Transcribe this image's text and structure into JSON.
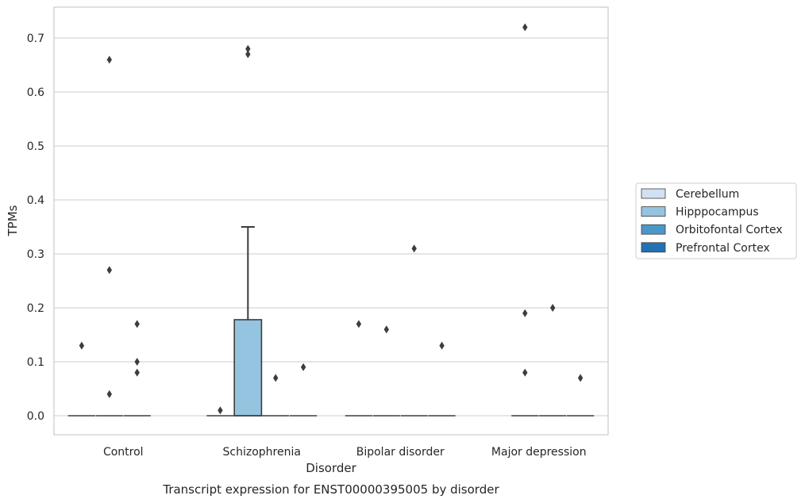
{
  "chart_data": {
    "type": "box",
    "title": "Transcript expression for ENST00000395005 by disorder",
    "xlabel": "Disorder",
    "ylabel": "TPMs",
    "ylim": [
      -0.035,
      0.76
    ],
    "yticks": [
      0.0,
      0.1,
      0.2,
      0.3,
      0.4,
      0.5,
      0.6,
      0.7
    ],
    "ytick_labels": [
      "0.0",
      "0.1",
      "0.2",
      "0.3",
      "0.4",
      "0.5",
      "0.6",
      "0.7"
    ],
    "grid": true,
    "legend_position": "right",
    "categories": [
      "Control",
      "Schizophrenia",
      "Bipolar disorder",
      "Major depression"
    ],
    "series": [
      {
        "name": "Cerebellum",
        "color": "#d0e1f2",
        "boxes": [
          {
            "q1": 0,
            "median": 0,
            "q3": 0,
            "whisker_low": 0,
            "whisker_high": 0,
            "outliers": [
              0.13
            ]
          },
          {
            "q1": 0,
            "median": 0,
            "q3": 0,
            "whisker_low": 0,
            "whisker_high": 0,
            "outliers": [
              0.01
            ]
          },
          {
            "q1": 0,
            "median": 0,
            "q3": 0,
            "whisker_low": 0,
            "whisker_high": 0,
            "outliers": [
              0.17
            ]
          },
          null
        ]
      },
      {
        "name": "Hipppocampus",
        "color": "#94c4df",
        "boxes": [
          {
            "q1": 0,
            "median": 0,
            "q3": 0,
            "whisker_low": 0,
            "whisker_high": 0,
            "outliers": [
              0.66,
              0.27,
              0.04
            ]
          },
          {
            "q1": 0,
            "median": 0,
            "q3": 0.178,
            "whisker_low": 0,
            "whisker_high": 0.35,
            "outliers": [
              0.68,
              0.67
            ]
          },
          {
            "q1": 0,
            "median": 0,
            "q3": 0,
            "whisker_low": 0,
            "whisker_high": 0,
            "outliers": [
              0.16
            ]
          },
          {
            "q1": 0,
            "median": 0,
            "q3": 0,
            "whisker_low": 0,
            "whisker_high": 0,
            "outliers": [
              0.72,
              0.19,
              0.08
            ]
          }
        ]
      },
      {
        "name": "Orbitofontal Cortex",
        "color": "#4a98c9",
        "boxes": [
          {
            "q1": 0,
            "median": 0,
            "q3": 0,
            "whisker_low": 0,
            "whisker_high": 0,
            "outliers": [
              0.17,
              0.1,
              0.08
            ]
          },
          {
            "q1": 0,
            "median": 0,
            "q3": 0,
            "whisker_low": 0,
            "whisker_high": 0,
            "outliers": [
              0.07
            ]
          },
          {
            "q1": 0,
            "median": 0,
            "q3": 0,
            "whisker_low": 0,
            "whisker_high": 0,
            "outliers": [
              0.31
            ]
          },
          {
            "q1": 0,
            "median": 0,
            "q3": 0,
            "whisker_low": 0,
            "whisker_high": 0,
            "outliers": [
              0.2
            ]
          }
        ]
      },
      {
        "name": "Prefrontal Cortex",
        "color": "#2271b5",
        "boxes": [
          null,
          {
            "q1": 0,
            "median": 0,
            "q3": 0,
            "whisker_low": 0,
            "whisker_high": 0,
            "outliers": [
              0.09
            ]
          },
          {
            "q1": 0,
            "median": 0,
            "q3": 0,
            "whisker_low": 0,
            "whisker_high": 0,
            "outliers": [
              0.13
            ]
          },
          {
            "q1": 0,
            "median": 0,
            "q3": 0,
            "whisker_low": 0,
            "whisker_high": 0,
            "outliers": [
              0.07
            ]
          }
        ]
      }
    ]
  }
}
